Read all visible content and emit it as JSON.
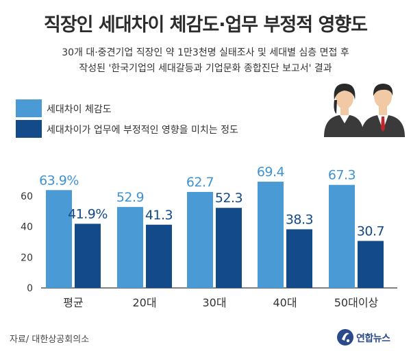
{
  "header": {
    "title": "직장인 세대차이 체감도·업무 부정적 영향도",
    "subtitle_line1": "30개 대·중견기업 직장인 약 1만3천명 실태조사 및 세대별 심층 면접 후",
    "subtitle_line2": "작성된 '한국기업의 세대갈등과 기업문화 종합진단 보고서' 결과"
  },
  "footer": {
    "source": "자료/ 대한상공회의소",
    "brand": "연합뉴스"
  },
  "colors": {
    "series1": "#4a9ad6",
    "series2": "#134a8a",
    "label1": "#3f93d3",
    "label2": "#134a8a"
  },
  "chart_data": {
    "type": "bar",
    "categories": [
      "평균",
      "20대",
      "30대",
      "40대",
      "50대이상"
    ],
    "series": [
      {
        "name": "세대차이 체감도",
        "values": [
          63.9,
          52.9,
          62.7,
          69.4,
          67.3
        ],
        "labels": [
          "63.9%",
          "52.9",
          "62.7",
          "69.4",
          "67.3"
        ]
      },
      {
        "name": "세대차이가 업무에 부정적인 영향을 미치는 정도",
        "values": [
          41.9,
          41.3,
          52.3,
          38.3,
          30.7
        ],
        "labels": [
          "41.9%",
          "41.3",
          "52.3",
          "38.3",
          "30.7"
        ]
      }
    ],
    "yticks": [
      "0",
      "20",
      "40",
      "60"
    ],
    "ylim": [
      0,
      60
    ],
    "grid": false,
    "legend": "top-left"
  }
}
